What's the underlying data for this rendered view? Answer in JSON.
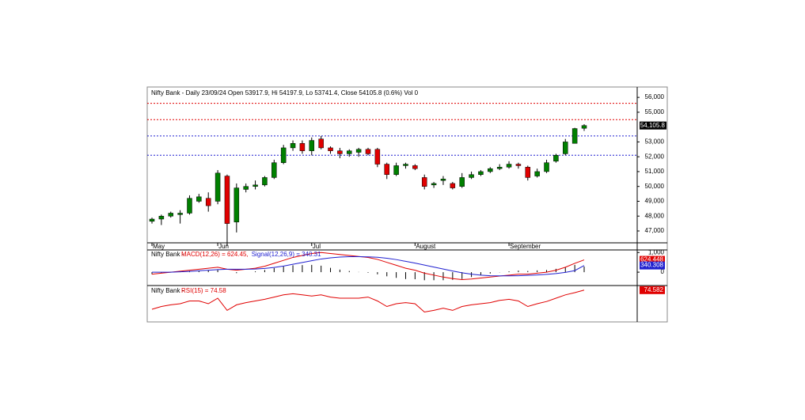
{
  "chart_data": [
    {
      "type": "candlestick",
      "title": "Nifty Bank - Daily 23/09/24 Open 53917.9, Hi 54197.9, Lo 53741.4, Close 54105.8 (0.6%) Vol 0",
      "open": [
        47650,
        47800,
        48000,
        48100,
        48200,
        49000,
        49200,
        49000,
        50700,
        47600,
        49800,
        50000,
        50100,
        50600,
        51600,
        52600,
        52900,
        52400,
        53200,
        52600,
        52400,
        52200,
        52300,
        52500,
        52500,
        51500,
        50800,
        51400,
        51400,
        50600,
        50100,
        50400,
        50200,
        50000,
        50600,
        50800,
        51000,
        51200,
        51300,
        51500,
        51300,
        50700,
        51000,
        51700,
        52200,
        52900,
        53917.9
      ],
      "high": [
        47900,
        48100,
        48300,
        48400,
        49400,
        49500,
        49600,
        51100,
        50800,
        50200,
        50200,
        50400,
        50700,
        51800,
        52800,
        53100,
        53100,
        53300,
        53400,
        52700,
        52600,
        52500,
        52600,
        52600,
        52600,
        51600,
        51600,
        51600,
        51500,
        50800,
        50300,
        50700,
        50300,
        50900,
        51000,
        51100,
        51300,
        51500,
        51700,
        51600,
        51400,
        51200,
        51800,
        52200,
        53200,
        53950,
        54197.9
      ],
      "low": [
        47500,
        47400,
        47900,
        47500,
        48100,
        48900,
        48300,
        48800,
        46000,
        46900,
        49600,
        49800,
        50000,
        50500,
        51500,
        52400,
        52200,
        52100,
        52500,
        52200,
        51900,
        52000,
        52000,
        52100,
        51300,
        50500,
        50700,
        51200,
        51100,
        49800,
        49900,
        50100,
        49800,
        49900,
        50500,
        50700,
        50900,
        51100,
        51200,
        51200,
        50400,
        50600,
        50900,
        51600,
        52100,
        52900,
        53741.4
      ],
      "close": [
        47800,
        48000,
        48200,
        48200,
        49200,
        49300,
        48700,
        50900,
        47500,
        49900,
        50000,
        50100,
        50600,
        51600,
        52600,
        52900,
        52400,
        53100,
        52600,
        52400,
        52200,
        52400,
        52500,
        52200,
        51500,
        50800,
        51400,
        51500,
        51200,
        50000,
        50200,
        50500,
        49900,
        50600,
        50800,
        51000,
        51200,
        51300,
        51500,
        51400,
        50600,
        51000,
        51600,
        52100,
        53000,
        53900,
        54105.8
      ],
      "up_color": "#008000",
      "down_color": "#e00000",
      "ylim": [
        46200,
        56700
      ],
      "yticks": [
        {
          "value": 56000,
          "label": "56,000"
        },
        {
          "value": 55000,
          "label": "55,000"
        },
        {
          "value": 53000,
          "label": "53,000"
        },
        {
          "value": 52000,
          "label": "52,000"
        },
        {
          "value": 51000,
          "label": "51,000"
        },
        {
          "value": 50000,
          "label": "50,000"
        },
        {
          "value": 49000,
          "label": "49,000"
        },
        {
          "value": 48000,
          "label": "48,000"
        },
        {
          "value": 47000,
          "label": "47,000"
        }
      ],
      "xticks": [
        {
          "value": 0,
          "label": "May"
        },
        {
          "value": 7,
          "label": "Jun"
        },
        {
          "value": 17,
          "label": "Jul"
        },
        {
          "value": 28,
          "label": "August"
        },
        {
          "value": 38,
          "label": "September"
        }
      ],
      "levels": [
        {
          "value": 55600,
          "color": "#e00000"
        },
        {
          "value": 54500,
          "color": "#e00000"
        },
        {
          "value": 53400,
          "color": "#2020d0"
        },
        {
          "value": 52100,
          "color": "#2020d0"
        }
      ],
      "last_label": {
        "value": 54105.8,
        "label": "54,105.8"
      }
    },
    {
      "type": "macd",
      "title": "Nifty Bank - ",
      "series": [
        {
          "name": "MACD(12,26) = 624.45,",
          "color": "#e00000",
          "values": [
            -100,
            -50,
            0,
            50,
            100,
            150,
            200,
            250,
            150,
            100,
            150,
            200,
            300,
            450,
            600,
            750,
            850,
            950,
            1000,
            950,
            900,
            850,
            800,
            750,
            650,
            500,
            350,
            200,
            100,
            -50,
            -150,
            -250,
            -330,
            -380,
            -350,
            -300,
            -250,
            -200,
            -150,
            -100,
            -100,
            -50,
            0,
            100,
            250,
            450,
            624.45
          ],
          "box_label": "624.448"
        },
        {
          "name": "Signal(12,26,9) = 340.31",
          "color": "#2020d0",
          "values": [
            0,
            0,
            0,
            20,
            40,
            70,
            100,
            130,
            150,
            150,
            150,
            160,
            190,
            240,
            310,
            400,
            490,
            580,
            670,
            730,
            770,
            790,
            790,
            780,
            760,
            710,
            640,
            550,
            460,
            360,
            260,
            160,
            60,
            -30,
            -100,
            -150,
            -180,
            -190,
            -190,
            -180,
            -160,
            -140,
            -110,
            -70,
            -10,
            80,
            340.31
          ],
          "box_label": "340.308"
        }
      ],
      "histogram": [
        -100,
        -50,
        0,
        30,
        60,
        80,
        100,
        120,
        0,
        -50,
        0,
        40,
        110,
        210,
        290,
        350,
        360,
        370,
        330,
        220,
        130,
        60,
        10,
        -30,
        -110,
        -210,
        -290,
        -350,
        -360,
        -410,
        -410,
        -410,
        -390,
        -350,
        -250,
        -150,
        -70,
        -10,
        40,
        80,
        60,
        90,
        110,
        170,
        260,
        370,
        284.14
      ],
      "ylim": [
        -600,
        1050
      ],
      "yticks": [
        {
          "value": 1000,
          "label": "1,000"
        },
        0
      ]
    },
    {
      "type": "rsi",
      "title": "Nifty Bank - ",
      "series": [
        {
          "name": "RSI(15) = 74.58",
          "color": "#e00000",
          "values": [
            40,
            45,
            48,
            50,
            55,
            55,
            50,
            60,
            38,
            48,
            52,
            55,
            58,
            62,
            66,
            68,
            66,
            64,
            66,
            62,
            60,
            60,
            60,
            62,
            55,
            45,
            50,
            52,
            50,
            35,
            38,
            42,
            38,
            45,
            48,
            50,
            52,
            56,
            58,
            55,
            45,
            50,
            54,
            60,
            66,
            70,
            74.58
          ],
          "box_label": "74.582"
        }
      ],
      "ylim": [
        20,
        80
      ]
    }
  ]
}
